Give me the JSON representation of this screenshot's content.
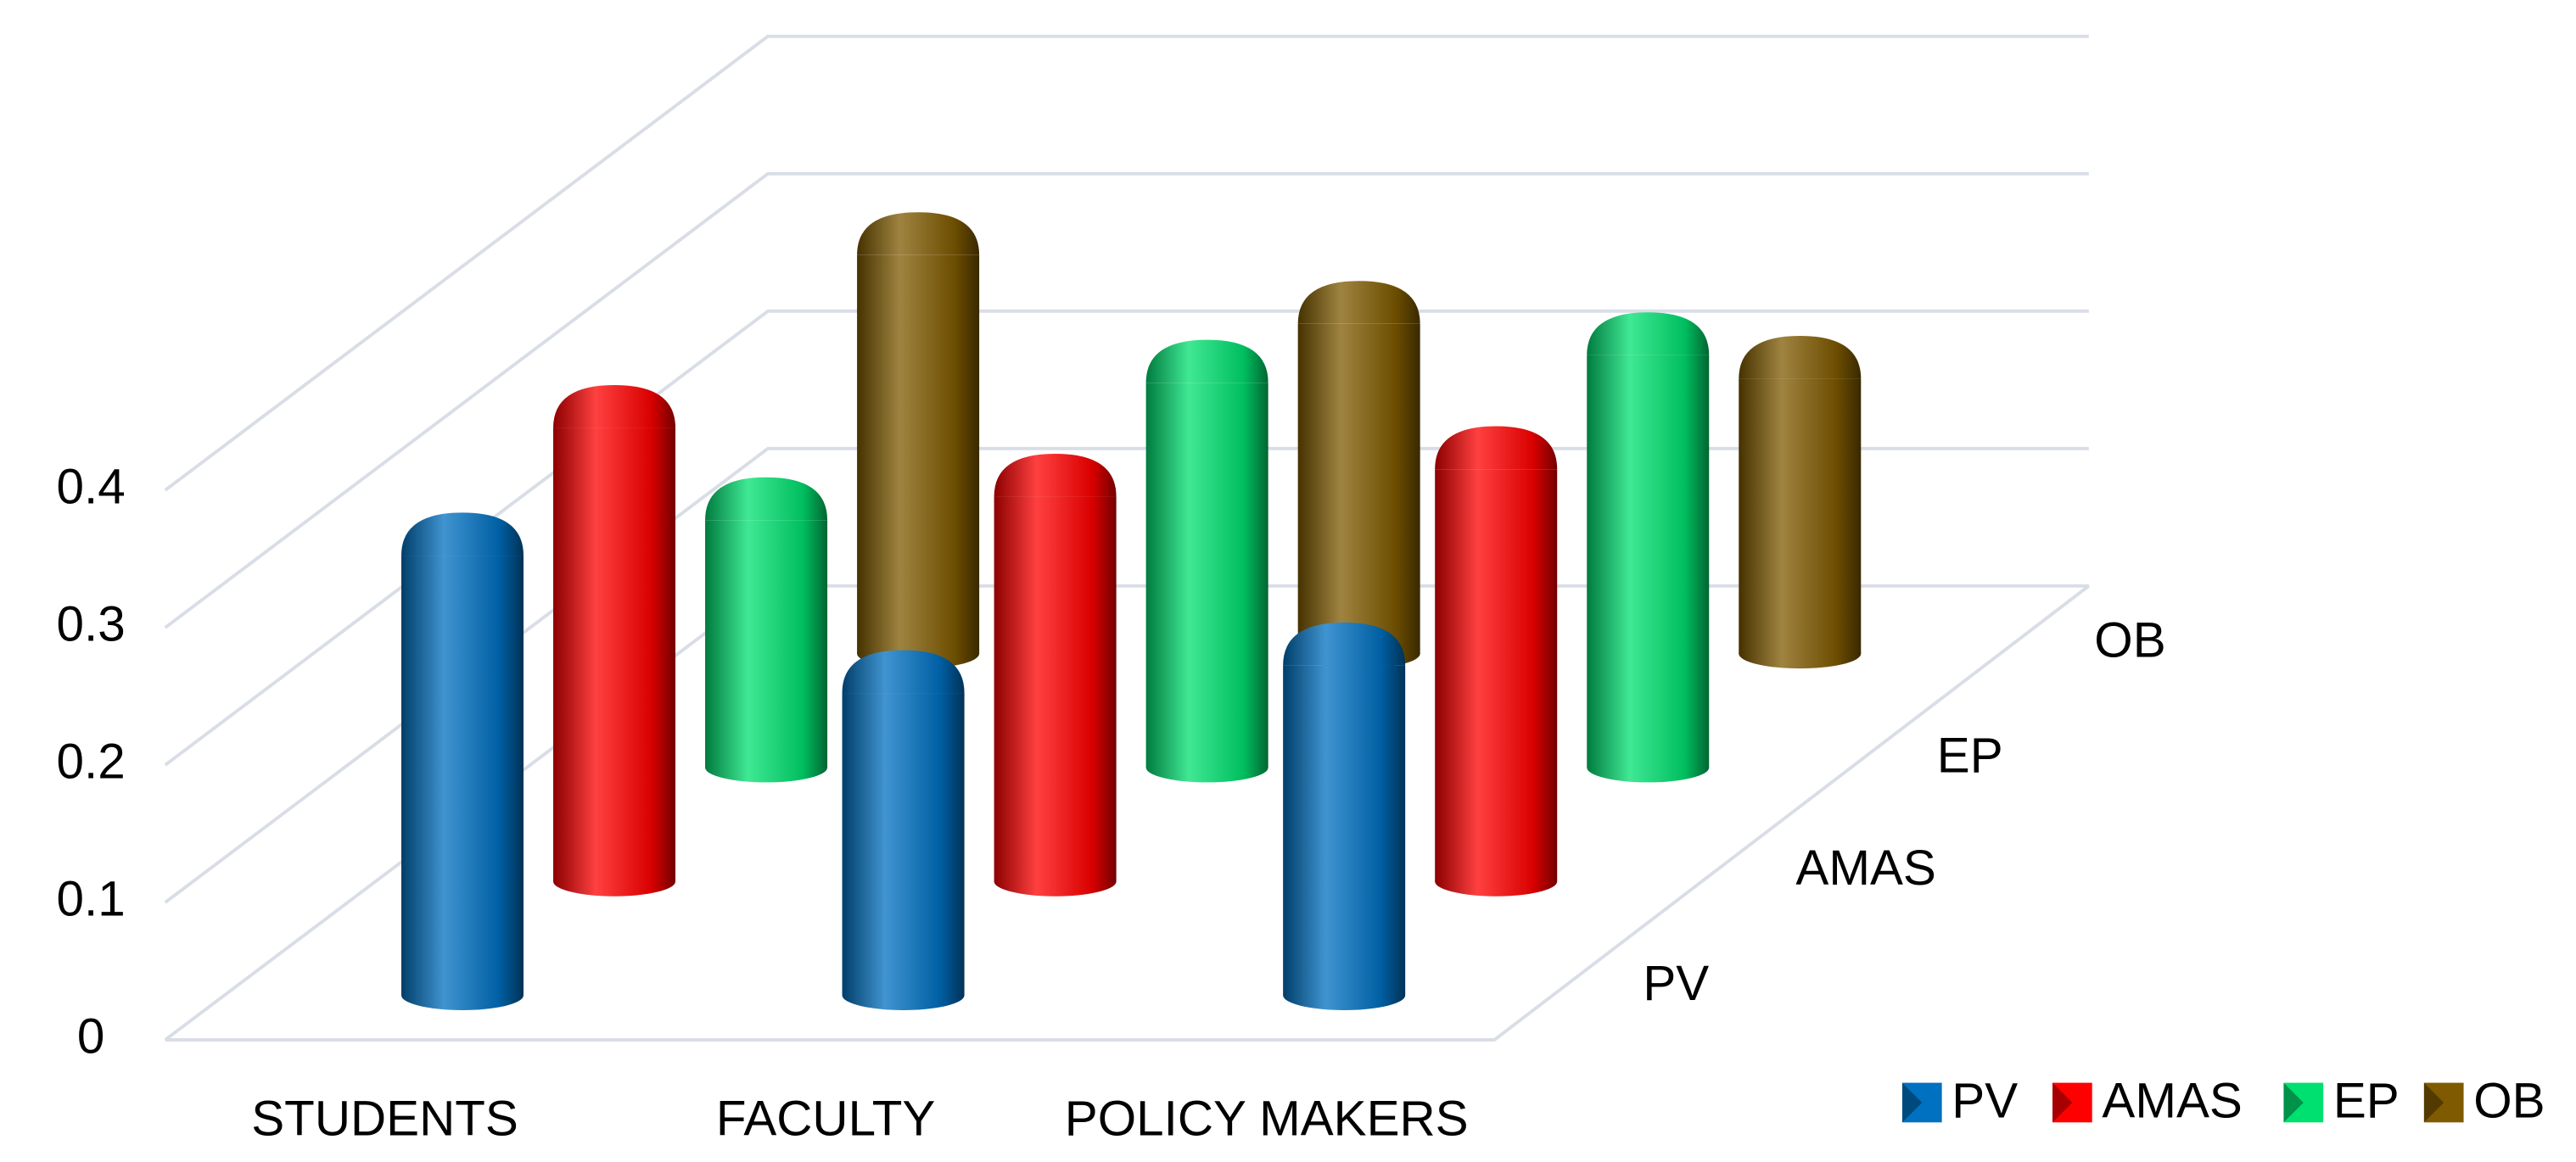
{
  "chart_data": {
    "type": "bar3d",
    "categories": [
      "STUDENTS",
      "FACULTY",
      "POLICY MAKERS"
    ],
    "series": [
      {
        "name": "PV",
        "color": "#0070c0",
        "values": [
          0.32,
          0.22,
          0.24
        ]
      },
      {
        "name": "AMAS",
        "color": "#ff0000",
        "values": [
          0.33,
          0.28,
          0.3
        ]
      },
      {
        "name": "EP",
        "color": "#00e070",
        "values": [
          0.18,
          0.28,
          0.3
        ]
      },
      {
        "name": "OB",
        "color": "#7f5a00",
        "values": [
          0.29,
          0.24,
          0.2
        ]
      }
    ],
    "ylim": [
      0,
      0.4
    ],
    "yticks": [
      0,
      0.1,
      0.2,
      0.3,
      0.4
    ],
    "grid": true,
    "legend": "bottom-right"
  }
}
